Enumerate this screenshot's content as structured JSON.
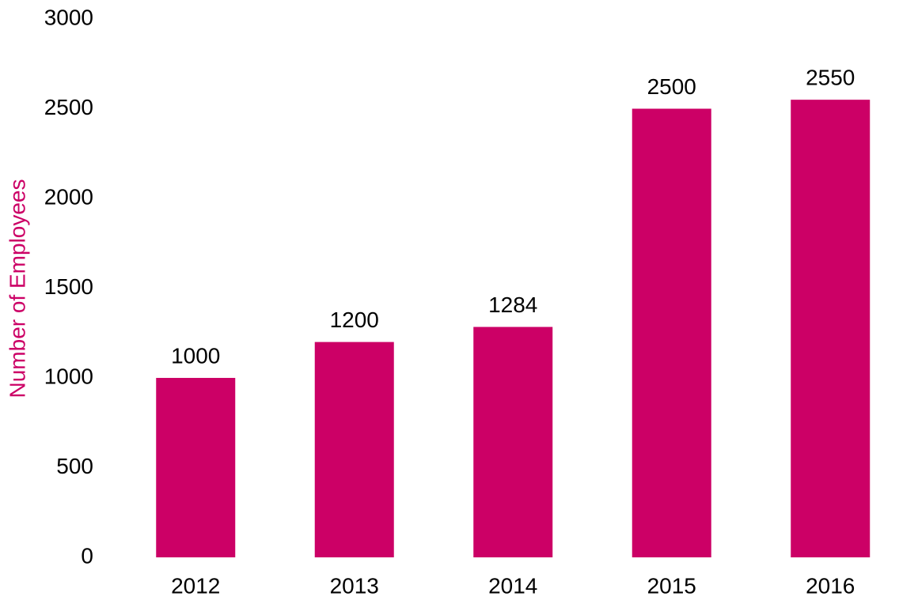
{
  "chart_data": {
    "type": "bar",
    "y_label": "Number of Employees",
    "categories": [
      "2012",
      "2013",
      "2014",
      "2015",
      "2016"
    ],
    "values": [
      1000,
      1200,
      1284,
      2500,
      2550
    ],
    "color": "#cc0066",
    "ylim": [
      0,
      3000
    ],
    "yticks": [
      0,
      500,
      1000,
      1500,
      2000,
      2500,
      3000
    ],
    "grid": false
  }
}
